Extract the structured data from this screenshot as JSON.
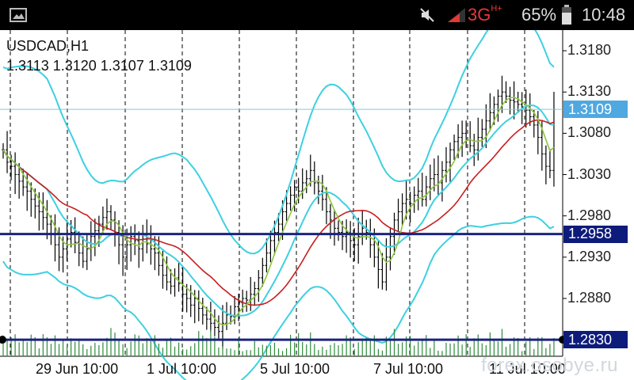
{
  "status_bar": {
    "network_label": "3G",
    "network_sup": "H+",
    "battery_percent": "65%",
    "time": "10:48",
    "icons": [
      "image-icon",
      "mute-icon",
      "signal-icon",
      "battery-icon"
    ]
  },
  "chart": {
    "symbol_label": "USDCAD,H1",
    "ohlc_label": "1.3113 1.3120 1.3107 1.3109",
    "current_price_badge": "1.3109",
    "level_badges": [
      "1.2958",
      "1.2830"
    ],
    "price_ticks": [
      "1.3180",
      "1.3130",
      "1.3080",
      "1.3030",
      "1.2980",
      "1.2930",
      "1.2880"
    ],
    "date_ticks": [
      "29 Jun 10:00",
      "1 Jul 10:00",
      "5 Jul 10:00",
      "7 Jul 10:00",
      "11 Jul 10:00"
    ],
    "watermark": "forex.osobye.ru",
    "colors": {
      "candles": "#000000",
      "bollinger": "#3ed0e0",
      "ma_fast": "#8cc63f",
      "ma_slow": "#c81e1e",
      "hline": "#1a237e",
      "current_line": "#7ccbd6",
      "volume": "#2e8b3a",
      "badge_level": "#0d1b7a",
      "badge_current": "#4fa8e0"
    }
  },
  "chart_data": {
    "type": "candlestick",
    "symbol": "USDCAD",
    "timeframe": "H1",
    "ylim": [
      1.281,
      1.3205
    ],
    "current_price": 1.3109,
    "horizontal_levels": [
      1.2958,
      1.283
    ],
    "y_ticks": [
      1.318,
      1.313,
      1.308,
      1.303,
      1.298,
      1.293,
      1.288
    ],
    "x_ticks": [
      "29 Jun 10:00",
      "1 Jul 10:00",
      "5 Jul 10:00",
      "7 Jul 10:00",
      "11 Jul 10:00"
    ],
    "closes": [
      1.306,
      1.3045,
      1.304,
      1.303,
      1.3022,
      1.3015,
      1.301,
      1.3,
      1.2992,
      1.2985,
      1.2978,
      1.297,
      1.2958,
      1.2945,
      1.293,
      1.294,
      1.2952,
      1.296,
      1.2948,
      1.2935,
      1.2925,
      1.294,
      1.2955,
      1.2962,
      1.297,
      1.2978,
      1.2985,
      1.2975,
      1.296,
      1.2945,
      1.293,
      1.2945,
      1.2955,
      1.295,
      1.294,
      1.2952,
      1.2946,
      1.294,
      1.2935,
      1.292,
      1.2908,
      1.29,
      1.2895,
      1.2905,
      1.2898,
      1.2885,
      1.288,
      1.2872,
      1.288,
      1.2868,
      1.286,
      1.2855,
      1.285,
      1.2845,
      1.284,
      1.285,
      1.286,
      1.2858,
      1.287,
      1.2875,
      1.288,
      1.2878,
      1.2885,
      1.2892,
      1.2905,
      1.292,
      1.2935,
      1.295,
      1.296,
      1.297,
      1.2985,
      1.2995,
      1.3005,
      1.3015,
      1.301,
      1.302,
      1.3025,
      1.3035,
      1.302,
      1.301,
      1.3,
      1.2985,
      1.2975,
      1.2965,
      1.296,
      1.2955,
      1.296,
      1.295,
      1.2945,
      1.2955,
      1.2965,
      1.296,
      1.2945,
      1.293,
      1.2915,
      1.29,
      1.293,
      1.2955,
      1.2975,
      1.2985,
      1.2995,
      1.3,
      1.2995,
      1.3005,
      1.301,
      1.3,
      1.3015,
      1.3025,
      1.303,
      1.302,
      1.3035,
      1.3045,
      1.306,
      1.307,
      1.3075,
      1.308,
      1.3072,
      1.3065,
      1.306,
      1.3075,
      1.3085,
      1.3095,
      1.3105,
      1.3115,
      1.3125,
      1.313,
      1.3125,
      1.312,
      1.3118,
      1.3115,
      1.3112,
      1.3108,
      1.31,
      1.309,
      1.3075,
      1.3055,
      1.304,
      1.3035,
      1.3109
    ]
  }
}
